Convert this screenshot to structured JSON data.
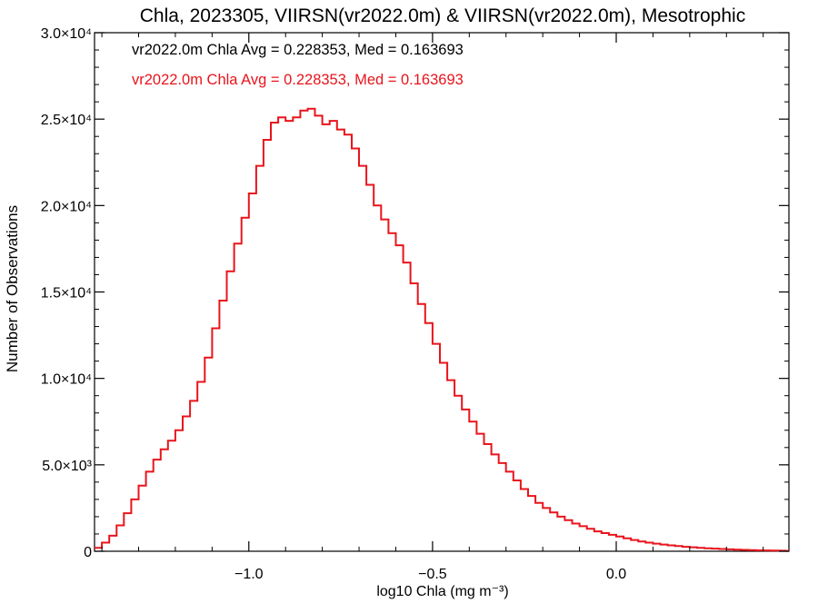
{
  "chart_data": {
    "type": "line",
    "title": "Chla, 2023305, VIIRSN(vr2022.0m) & VIIRSN(vr2022.0m), Mesotrophic",
    "xlabel": "log10 Chla (mg m⁻³)",
    "ylabel": "Number of Observations",
    "xlim": [
      -1.42,
      0.47
    ],
    "ylim": [
      0,
      30000
    ],
    "x_ticks": [
      {
        "value": -1.0,
        "label": "−1.0"
      },
      {
        "value": -0.5,
        "label": "−0.5"
      },
      {
        "value": 0.0,
        "label": "0.0"
      }
    ],
    "y_ticks": [
      {
        "value": 0,
        "label": "0"
      },
      {
        "value": 5000,
        "label": "5.0×10³"
      },
      {
        "value": 10000,
        "label": "1.0×10⁴"
      },
      {
        "value": 15000,
        "label": "1.5×10⁴"
      },
      {
        "value": 20000,
        "label": "2.0×10⁴"
      },
      {
        "value": 25000,
        "label": "2.5×10⁴"
      },
      {
        "value": 30000,
        "label": "3.0×10⁴"
      }
    ],
    "annotations": [
      {
        "text": "vr2022.0m Chla Avg = 0.228353, Med = 0.163693",
        "color": "#000000"
      },
      {
        "text": "vr2022.0m Chla Avg = 0.228353, Med = 0.163693",
        "color": "#e8141c"
      }
    ],
    "series": [
      {
        "color": "#e8141c",
        "style": "step",
        "points": [
          [
            -1.42,
            200
          ],
          [
            -1.4,
            500
          ],
          [
            -1.38,
            900
          ],
          [
            -1.36,
            1500
          ],
          [
            -1.34,
            2200
          ],
          [
            -1.32,
            3000
          ],
          [
            -1.3,
            3800
          ],
          [
            -1.28,
            4600
          ],
          [
            -1.26,
            5300
          ],
          [
            -1.24,
            5900
          ],
          [
            -1.22,
            6400
          ],
          [
            -1.2,
            7000
          ],
          [
            -1.18,
            7800
          ],
          [
            -1.16,
            8700
          ],
          [
            -1.14,
            9800
          ],
          [
            -1.12,
            11200
          ],
          [
            -1.1,
            12900
          ],
          [
            -1.08,
            14500
          ],
          [
            -1.06,
            16200
          ],
          [
            -1.04,
            17800
          ],
          [
            -1.02,
            19300
          ],
          [
            -1.0,
            20700
          ],
          [
            -0.98,
            22300
          ],
          [
            -0.96,
            23800
          ],
          [
            -0.94,
            24800
          ],
          [
            -0.92,
            25100
          ],
          [
            -0.9,
            24900
          ],
          [
            -0.88,
            25100
          ],
          [
            -0.86,
            25500
          ],
          [
            -0.84,
            25600
          ],
          [
            -0.82,
            25200
          ],
          [
            -0.8,
            24700
          ],
          [
            -0.78,
            24900
          ],
          [
            -0.76,
            24400
          ],
          [
            -0.74,
            24100
          ],
          [
            -0.72,
            23300
          ],
          [
            -0.7,
            22300
          ],
          [
            -0.68,
            21200
          ],
          [
            -0.66,
            20000
          ],
          [
            -0.64,
            19200
          ],
          [
            -0.62,
            18400
          ],
          [
            -0.6,
            17700
          ],
          [
            -0.58,
            16700
          ],
          [
            -0.56,
            15500
          ],
          [
            -0.54,
            14300
          ],
          [
            -0.52,
            13200
          ],
          [
            -0.5,
            12000
          ],
          [
            -0.48,
            10900
          ],
          [
            -0.46,
            9900
          ],
          [
            -0.44,
            9000
          ],
          [
            -0.42,
            8200
          ],
          [
            -0.4,
            7500
          ],
          [
            -0.38,
            6800
          ],
          [
            -0.36,
            6200
          ],
          [
            -0.34,
            5600
          ],
          [
            -0.32,
            5100
          ],
          [
            -0.3,
            4600
          ],
          [
            -0.28,
            4100
          ],
          [
            -0.26,
            3600
          ],
          [
            -0.24,
            3200
          ],
          [
            -0.22,
            2800
          ],
          [
            -0.2,
            2500
          ],
          [
            -0.18,
            2250
          ],
          [
            -0.16,
            2000
          ],
          [
            -0.14,
            1800
          ],
          [
            -0.12,
            1600
          ],
          [
            -0.1,
            1450
          ],
          [
            -0.08,
            1300
          ],
          [
            -0.06,
            1150
          ],
          [
            -0.04,
            1050
          ],
          [
            -0.02,
            950
          ],
          [
            0.0,
            850
          ],
          [
            0.02,
            750
          ],
          [
            0.04,
            650
          ],
          [
            0.06,
            570
          ],
          [
            0.08,
            500
          ],
          [
            0.1,
            440
          ],
          [
            0.12,
            390
          ],
          [
            0.14,
            340
          ],
          [
            0.16,
            300
          ],
          [
            0.18,
            260
          ],
          [
            0.2,
            230
          ],
          [
            0.22,
            200
          ],
          [
            0.24,
            170
          ],
          [
            0.26,
            150
          ],
          [
            0.28,
            130
          ],
          [
            0.3,
            110
          ],
          [
            0.32,
            95
          ],
          [
            0.34,
            80
          ],
          [
            0.36,
            65
          ],
          [
            0.38,
            55
          ],
          [
            0.4,
            45
          ],
          [
            0.42,
            35
          ],
          [
            0.44,
            30
          ],
          [
            0.46,
            20
          ]
        ]
      }
    ]
  }
}
